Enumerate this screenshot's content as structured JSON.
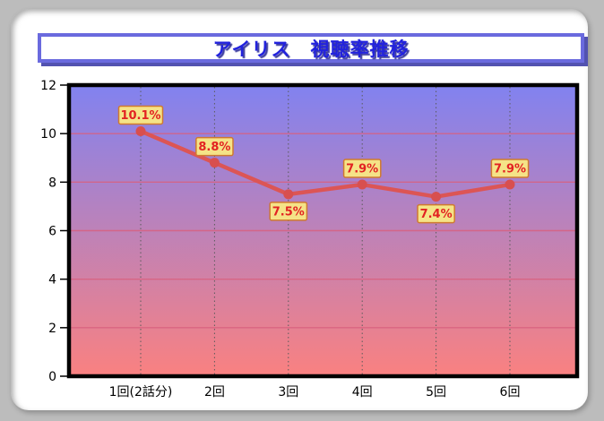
{
  "window": {
    "outer_bg": "#bcbcbc",
    "card_bg": "#ffffff"
  },
  "title": {
    "text": "アイリス　視聴率推移",
    "text_color": "#2222dd",
    "border_color": "#6a6ade",
    "shadow_color": "#5252b0"
  },
  "chart_data": {
    "type": "line",
    "title": "アイリス　視聴率推移",
    "categories": [
      "1回(2話分)",
      "2回",
      "3回",
      "4回",
      "5回",
      "6回"
    ],
    "series": [
      {
        "name": "視聴率",
        "values": [
          10.1,
          8.8,
          7.5,
          7.9,
          7.4,
          7.9
        ]
      }
    ],
    "point_labels": [
      "10.1%",
      "8.8%",
      "7.5%",
      "7.9%",
      "7.4%",
      "7.9%"
    ],
    "label_position": [
      "above",
      "above",
      "below",
      "above",
      "below",
      "above"
    ],
    "ylim": [
      0,
      12
    ],
    "y_ticks": [
      0,
      2,
      4,
      6,
      8,
      10,
      12
    ],
    "grid": {
      "horizontal": "solid",
      "vertical": "dotted"
    },
    "legend": "none",
    "xlabel": "",
    "ylabel": "",
    "colors": {
      "plot_bg_top": "#8282ef",
      "plot_bg_bottom": "#f98181",
      "line": "#dc5555",
      "marker": "#d84f4f",
      "h_grid": "#d8607e",
      "v_grid": "#5a5a5a",
      "plot_border": "#000000",
      "axis_text": "#000000",
      "label_bg": "#f5e387",
      "label_border": "#cf7930",
      "label_text": "#e22222"
    }
  }
}
